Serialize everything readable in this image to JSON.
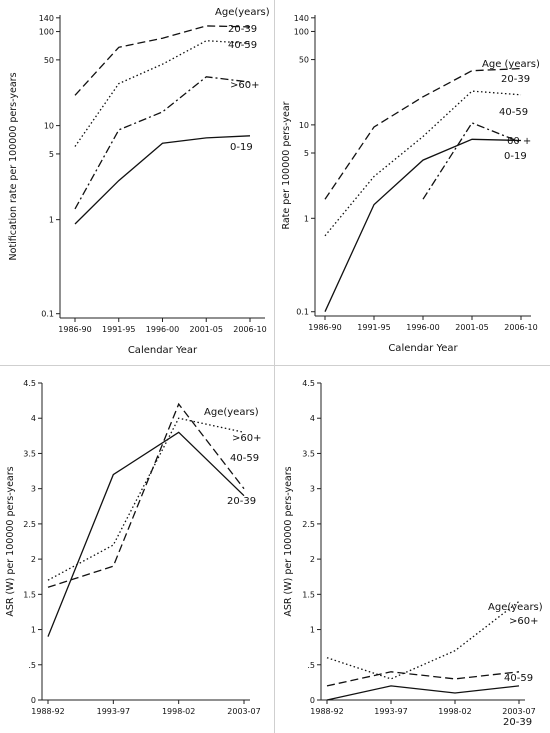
{
  "chart_data": [
    {
      "type": "line",
      "xscale": "category",
      "yscale": "log",
      "categories": [
        "1986-90",
        "1991-95",
        "1996-00",
        "2001-05",
        "2006-10"
      ],
      "ylabel": "Notification rate per 100000 pers-years",
      "xlabel": "Calendar Year",
      "ylim": [
        0.09,
        150
      ],
      "yticks": [
        0.1,
        1,
        5,
        10,
        50,
        100,
        140
      ],
      "ytick_labels": [
        "0.1",
        "1",
        "5",
        "10",
        "50",
        "100",
        "140"
      ],
      "legend_title": "Age(years)",
      "series": [
        {
          "name": "20-39",
          "dash": "long",
          "values": [
            21,
            68,
            85,
            115,
            112
          ]
        },
        {
          "name": "40-59",
          "dash": "dot",
          "values": [
            6,
            28,
            45,
            80,
            75
          ]
        },
        {
          "name": ">60+",
          "dash": "dashdot",
          "values": [
            1.3,
            9,
            14,
            33,
            29
          ]
        },
        {
          "name": "0-19",
          "dash": "solid",
          "values": [
            0.9,
            2.6,
            6.5,
            7.4,
            7.8
          ]
        }
      ]
    },
    {
      "type": "line",
      "xscale": "category",
      "yscale": "log",
      "categories": [
        "1986-90",
        "1991-95",
        "1996-00",
        "2001-05",
        "2006-10"
      ],
      "ylabel": "Rate per 100000 pers-year",
      "xlabel": "Calendar Year",
      "ylim": [
        0.09,
        150
      ],
      "yticks": [
        0.1,
        1,
        5,
        10,
        50,
        100,
        140
      ],
      "ytick_labels": [
        "0.1",
        "1",
        "5",
        "10",
        "50",
        "100",
        "140"
      ],
      "legend_title": "Age (years)",
      "series": [
        {
          "name": "20-39",
          "dash": "long",
          "values": [
            1.6,
            9.5,
            20,
            38,
            40
          ]
        },
        {
          "name": "40-59",
          "dash": "dot",
          "values": [
            0.65,
            2.8,
            7.5,
            23,
            21
          ]
        },
        {
          "name": "60 +",
          "dash": "dashdot",
          "values": [
            null,
            null,
            1.6,
            10.5,
            6.5
          ]
        },
        {
          "name": "0-19",
          "dash": "solid",
          "values": [
            0.1,
            1.4,
            4.2,
            7,
            6.8
          ]
        }
      ]
    },
    {
      "type": "line",
      "xscale": "category",
      "yscale": "linear",
      "categories": [
        "1988-92",
        "1993-97",
        "1998-02",
        "2003-07"
      ],
      "ylabel": "ASR (W) per 100000 pers-years",
      "xlabel": "",
      "ylim": [
        0,
        4.5
      ],
      "yticks": [
        0,
        0.5,
        1,
        1.5,
        2,
        2.5,
        3,
        3.5,
        4,
        4.5
      ],
      "ytick_labels": [
        "0",
        ".5",
        "1",
        "1.5",
        "2",
        "2.5",
        "3",
        "3.5",
        "4",
        "4.5"
      ],
      "legend_title": "Age(years)",
      "series": [
        {
          "name": ">60+",
          "dash": "dot",
          "values": [
            1.7,
            2.2,
            4.0,
            3.8
          ]
        },
        {
          "name": "40-59",
          "dash": "long",
          "values": [
            1.6,
            1.9,
            4.2,
            3.0
          ]
        },
        {
          "name": "20-39",
          "dash": "solid",
          "values": [
            0.9,
            3.2,
            3.8,
            2.9
          ]
        }
      ]
    },
    {
      "type": "line",
      "xscale": "category",
      "yscale": "linear",
      "categories": [
        "1988-92",
        "1993-97",
        "1998-02",
        "2003-07"
      ],
      "ylabel": "ASR (W) per 100000 pers-years",
      "xlabel": "",
      "ylim": [
        0,
        4.5
      ],
      "yticks": [
        0,
        0.5,
        1,
        1.5,
        2,
        2.5,
        3,
        3.5,
        4,
        4.5
      ],
      "ytick_labels": [
        "0",
        ".5",
        "1",
        "1.5",
        "2",
        "2.5",
        "3",
        "3.5",
        "4",
        "4.5"
      ],
      "legend_title": "Age(years)",
      "series": [
        {
          "name": ">60+",
          "dash": "dot",
          "values": [
            0.6,
            0.3,
            0.7,
            1.4
          ]
        },
        {
          "name": "40-59",
          "dash": "long",
          "values": [
            0.2,
            0.4,
            0.3,
            0.4
          ]
        },
        {
          "name": "20-39",
          "dash": "solid",
          "values": [
            0.0,
            0.2,
            0.1,
            0.2
          ]
        }
      ]
    }
  ]
}
